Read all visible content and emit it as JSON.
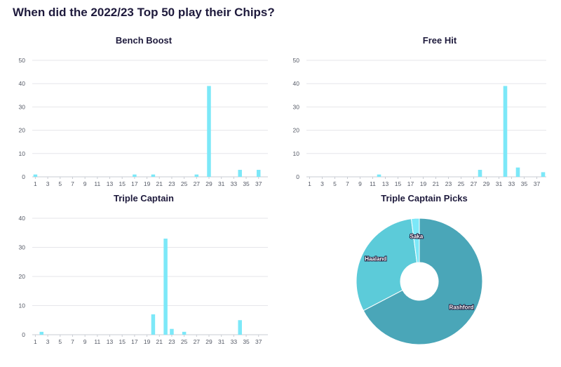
{
  "title": "When did the 2022/23 Top 50 play their Chips?",
  "colors": {
    "bar": "#7ce8f8",
    "grid": "#e6e6ea",
    "axis": "#c9ccd3",
    "pie": [
      "#4aa6b8",
      "#5ccbd9",
      "#7ce8f8"
    ]
  },
  "chart_data": [
    {
      "type": "bar",
      "title": "Bench Boost",
      "categories": [
        "1",
        "2",
        "3",
        "4",
        "5",
        "6",
        "7",
        "8",
        "9",
        "10",
        "11",
        "12",
        "13",
        "14",
        "15",
        "16",
        "17",
        "18",
        "19",
        "20",
        "21",
        "22",
        "23",
        "24",
        "25",
        "26",
        "27",
        "28",
        "29",
        "30",
        "31",
        "32",
        "33",
        "34",
        "35",
        "36",
        "37",
        "38"
      ],
      "xticks": [
        "1",
        "3",
        "5",
        "7",
        "9",
        "11",
        "13",
        "15",
        "17",
        "19",
        "21",
        "23",
        "25",
        "27",
        "29",
        "31",
        "33",
        "35",
        "37"
      ],
      "values": [
        1,
        0,
        0,
        0,
        0,
        0,
        0,
        0,
        0,
        0,
        0,
        0,
        0,
        0,
        0,
        0,
        1,
        0,
        0,
        1,
        0,
        0,
        0,
        0,
        0,
        0,
        1,
        0,
        39,
        0,
        0,
        0,
        0,
        3,
        0,
        0,
        3,
        0
      ],
      "ylim": [
        0,
        50
      ],
      "yticks": [
        0,
        10,
        20,
        30,
        40,
        50
      ]
    },
    {
      "type": "bar",
      "title": "Free Hit",
      "categories": [
        "1",
        "2",
        "3",
        "4",
        "5",
        "6",
        "7",
        "8",
        "9",
        "10",
        "11",
        "12",
        "13",
        "14",
        "15",
        "16",
        "17",
        "18",
        "19",
        "20",
        "21",
        "22",
        "23",
        "24",
        "25",
        "26",
        "27",
        "28",
        "29",
        "30",
        "31",
        "32",
        "33",
        "34",
        "35",
        "36",
        "37",
        "38"
      ],
      "xticks": [
        "1",
        "3",
        "5",
        "7",
        "9",
        "11",
        "13",
        "15",
        "17",
        "19",
        "21",
        "23",
        "25",
        "27",
        "29",
        "31",
        "33",
        "35",
        "37"
      ],
      "values": [
        0,
        0,
        0,
        0,
        0,
        0,
        0,
        0,
        0,
        0,
        0,
        1,
        0,
        0,
        0,
        0,
        0,
        0,
        0,
        0,
        0,
        0,
        0,
        0,
        0,
        0,
        0,
        3,
        0,
        0,
        0,
        39,
        0,
        4,
        0,
        0,
        0,
        2
      ],
      "ylim": [
        0,
        50
      ],
      "yticks": [
        0,
        10,
        20,
        30,
        40,
        50
      ]
    },
    {
      "type": "bar",
      "title": "Triple Captain",
      "categories": [
        "1",
        "2",
        "3",
        "4",
        "5",
        "6",
        "7",
        "8",
        "9",
        "10",
        "11",
        "12",
        "13",
        "14",
        "15",
        "16",
        "17",
        "18",
        "19",
        "20",
        "21",
        "22",
        "23",
        "24",
        "25",
        "26",
        "27",
        "28",
        "29",
        "30",
        "31",
        "32",
        "33",
        "34",
        "35",
        "36",
        "37",
        "38"
      ],
      "xticks": [
        "1",
        "3",
        "5",
        "7",
        "9",
        "11",
        "13",
        "15",
        "17",
        "19",
        "21",
        "23",
        "25",
        "27",
        "29",
        "31",
        "33",
        "35",
        "37"
      ],
      "values": [
        0,
        1,
        0,
        0,
        0,
        0,
        0,
        0,
        0,
        0,
        0,
        0,
        0,
        0,
        0,
        0,
        0,
        0,
        0,
        7,
        0,
        33,
        2,
        0,
        1,
        0,
        0,
        0,
        0,
        0,
        0,
        0,
        0,
        5,
        0,
        0,
        0,
        0
      ],
      "ylim": [
        0,
        40
      ],
      "yticks": [
        0,
        10,
        20,
        30,
        40
      ]
    },
    {
      "type": "pie",
      "title": "Triple Captain Picks",
      "labels": [
        "Rashford",
        "Haaland",
        "Saka"
      ],
      "values": [
        33,
        15,
        1
      ]
    }
  ]
}
